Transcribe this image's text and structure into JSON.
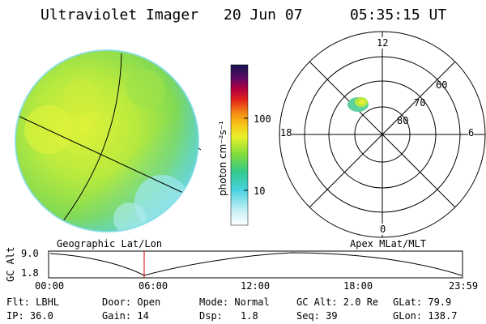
{
  "header": {
    "instrument": "Ultraviolet Imager",
    "date": "20 Jun 07",
    "time": "05:35:15 UT"
  },
  "colorbar": {
    "label": "photon cm⁻²s⁻¹",
    "ticks": [
      "100",
      "10"
    ]
  },
  "polar_plot": {
    "mlt_labels": [
      "12",
      "18",
      "6",
      "0"
    ],
    "mlat_labels": [
      "60",
      "70",
      "80"
    ]
  },
  "panel_titles": {
    "left": "Geographic Lat/Lon",
    "right": "Apex MLat/MLT"
  },
  "altitude_plot": {
    "axis_label": "GC Alt",
    "y_ticks": [
      "9.0",
      "1.8"
    ],
    "x_ticks": [
      "00:00",
      "06:00",
      "12:00",
      "18:00",
      "23:59"
    ]
  },
  "info": {
    "col1": [
      "Flt: LBHL",
      "IP: 36.0"
    ],
    "col2": [
      "Door: Open",
      "Gain: 14"
    ],
    "col3a": [
      "Mode: Normal",
      "Dsp:"
    ],
    "col3b": [
      "",
      "1.8"
    ],
    "col4": [
      "GC Alt: 2.0 Re",
      "Seq: 39"
    ],
    "col5": [
      "GLat:  79.9",
      "GLon: 138.7"
    ]
  },
  "colors": {
    "earth_green": "#a6e24a",
    "earth_yellow": "#d9f23a",
    "earth_cyan": "#5cd6e6",
    "cursor_red": "#e00000"
  }
}
